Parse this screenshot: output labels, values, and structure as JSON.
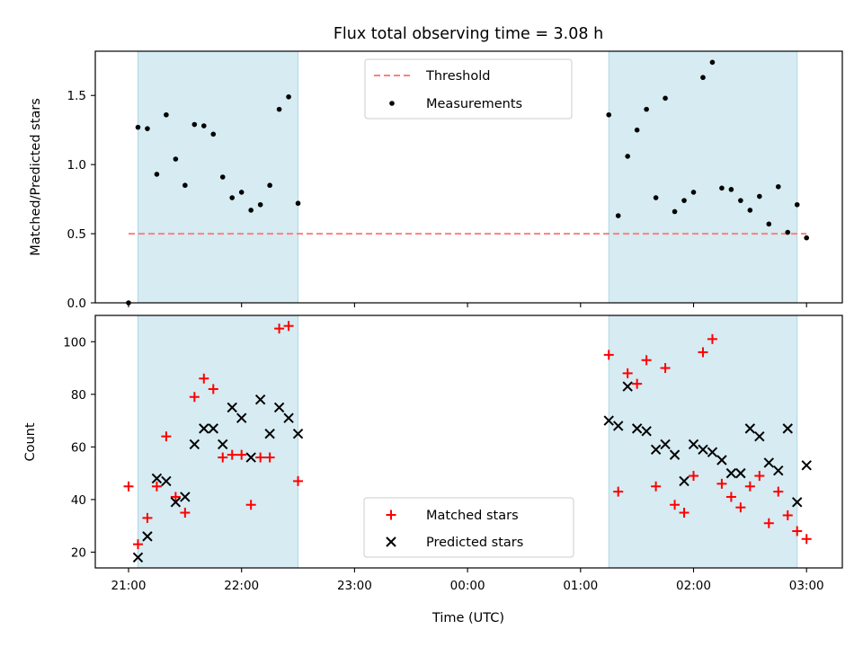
{
  "chart_data": [
    {
      "type": "scatter",
      "title": "Flux total observing time = 3.08 h",
      "xlabel": "",
      "ylabel": "Matched/Predicted stars",
      "ylim": [
        0,
        1.82
      ],
      "yticks": [
        "0.0",
        "0.5",
        "1.0",
        "1.5"
      ],
      "shaded_intervals": [
        [
          "21:05",
          "22:30"
        ],
        [
          "01:15",
          "02:55"
        ]
      ],
      "legend": {
        "position": "top-center",
        "entries": [
          "Threshold",
          "Measurements"
        ]
      },
      "threshold": {
        "name": "Threshold",
        "y": 0.5,
        "x_range": [
          "21:00",
          "03:00"
        ],
        "color": "#ff7f7f"
      },
      "series": [
        {
          "name": "Measurements",
          "color": "#000000",
          "x": [
            "21:00",
            "21:05",
            "21:10",
            "21:15",
            "21:20",
            "21:25",
            "21:30",
            "21:35",
            "21:40",
            "21:45",
            "21:50",
            "21:55",
            "22:00",
            "22:05",
            "22:10",
            "22:15",
            "22:20",
            "22:25",
            "22:30",
            "01:15",
            "01:20",
            "01:25",
            "01:30",
            "01:35",
            "01:40",
            "01:45",
            "01:50",
            "01:55",
            "02:00",
            "02:05",
            "02:10",
            "02:15",
            "02:20",
            "02:25",
            "02:30",
            "02:35",
            "02:40",
            "02:45",
            "02:50",
            "02:55",
            "03:00"
          ],
          "y": [
            0.0,
            1.27,
            1.26,
            0.93,
            1.36,
            1.04,
            0.85,
            1.29,
            1.28,
            1.22,
            0.91,
            0.76,
            0.8,
            0.67,
            0.71,
            0.85,
            1.4,
            1.49,
            0.72,
            1.36,
            0.63,
            1.06,
            1.25,
            1.4,
            0.76,
            1.48,
            0.66,
            0.74,
            0.8,
            1.63,
            1.74,
            0.83,
            0.82,
            0.74,
            0.67,
            0.77,
            0.57,
            0.84,
            0.51,
            0.71,
            0.47
          ]
        }
      ]
    },
    {
      "type": "scatter",
      "xlabel": "Time (UTC)",
      "ylabel": "Count",
      "ylim": [
        14,
        110
      ],
      "yticks": [
        "20",
        "40",
        "60",
        "80",
        "100"
      ],
      "xticks": [
        "21:00",
        "22:00",
        "23:00",
        "00:00",
        "01:00",
        "02:00",
        "03:00"
      ],
      "shaded_intervals": [
        [
          "21:05",
          "22:30"
        ],
        [
          "01:15",
          "02:55"
        ]
      ],
      "legend": {
        "position": "bottom-center",
        "entries": [
          "Matched stars",
          "Predicted stars"
        ]
      },
      "series": [
        {
          "name": "Matched stars",
          "marker": "plus",
          "color": "#ff0000",
          "x": [
            "21:00",
            "21:05",
            "21:10",
            "21:15",
            "21:20",
            "21:25",
            "21:30",
            "21:35",
            "21:40",
            "21:45",
            "21:50",
            "21:55",
            "22:00",
            "22:05",
            "22:10",
            "22:15",
            "22:20",
            "22:25",
            "22:30",
            "01:15",
            "01:20",
            "01:25",
            "01:30",
            "01:35",
            "01:40",
            "01:45",
            "01:50",
            "01:55",
            "02:00",
            "02:05",
            "02:10",
            "02:15",
            "02:20",
            "02:25",
            "02:30",
            "02:35",
            "02:40",
            "02:45",
            "02:50",
            "02:55",
            "03:00"
          ],
          "y": [
            45,
            23,
            33,
            45,
            64,
            41,
            35,
            79,
            86,
            82,
            56,
            57,
            57,
            38,
            56,
            56,
            105,
            106,
            47,
            95,
            43,
            88,
            84,
            93,
            45,
            90,
            38,
            35,
            49,
            96,
            101,
            46,
            41,
            37,
            45,
            49,
            31,
            43,
            34,
            28,
            25
          ]
        },
        {
          "name": "Predicted stars",
          "marker": "x",
          "color": "#000000",
          "x": [
            "21:05",
            "21:10",
            "21:15",
            "21:20",
            "21:25",
            "21:30",
            "21:35",
            "21:40",
            "21:45",
            "21:50",
            "21:55",
            "22:00",
            "22:05",
            "22:10",
            "22:15",
            "22:20",
            "22:25",
            "22:30",
            "01:15",
            "01:20",
            "01:25",
            "01:30",
            "01:35",
            "01:40",
            "01:45",
            "01:50",
            "01:55",
            "02:00",
            "02:05",
            "02:10",
            "02:15",
            "02:20",
            "02:25",
            "02:30",
            "02:35",
            "02:40",
            "02:45",
            "02:50",
            "02:55",
            "03:00"
          ],
          "y": [
            18,
            26,
            48,
            47,
            39,
            41,
            61,
            67,
            67,
            61,
            75,
            71,
            56,
            78,
            65,
            75,
            71,
            65,
            70,
            68,
            83,
            67,
            66,
            59,
            61,
            57,
            47,
            61,
            59,
            58,
            55,
            50,
            50,
            67,
            64,
            54,
            51,
            67,
            39,
            53
          ]
        }
      ]
    }
  ]
}
